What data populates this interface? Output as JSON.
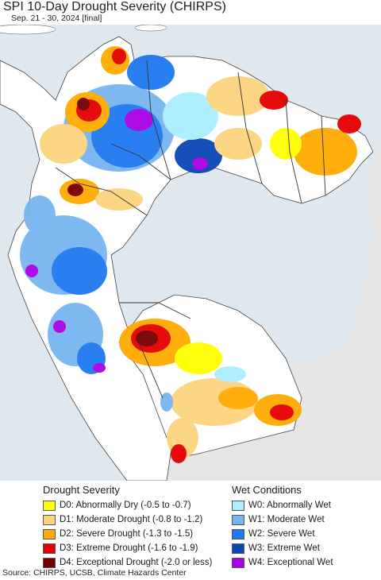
{
  "title": "SPI 10-Day Drought Severity (CHIRPS)",
  "subtitle": "Sep. 21 - 30, 2024 [final]",
  "legend": {
    "drought": {
      "heading": "Drought Severity",
      "items": [
        {
          "label": "D0: Abnormally Dry (-0.5 to -0.7)",
          "color": "#ffff00"
        },
        {
          "label": "D1: Moderate Drought (-0.8 to -1.2)",
          "color": "#fcd37f"
        },
        {
          "label": "D2: Severe Drought (-1.3 to -1.5)",
          "color": "#ffaa00"
        },
        {
          "label": "D3: Extreme Drought (-1.6 to -1.9)",
          "color": "#e60000"
        },
        {
          "label": "D4: Exceptional Drought (-2.0 or less)",
          "color": "#730000"
        }
      ]
    },
    "wet": {
      "heading": "Wet Conditions",
      "items": [
        {
          "label": "W0: Abnormally Wet",
          "color": "#aaeeff"
        },
        {
          "label": "W1: Moderate Wet",
          "color": "#77b5f0"
        },
        {
          "label": "W2: Severe Wet",
          "color": "#1e78f0"
        },
        {
          "label": "W3: Extreme Wet",
          "color": "#0a46b4"
        },
        {
          "label": "W4: Exceptional Wet",
          "color": "#aa00e6"
        }
      ]
    }
  },
  "map": {
    "ocean_color": "#e0e8ee",
    "land_color": "#ffffff",
    "outside_color": "#e6e6e6",
    "border_color": "#555555"
  },
  "source": "Source: CHIRPS, UCSB, Climate Hazards Center"
}
